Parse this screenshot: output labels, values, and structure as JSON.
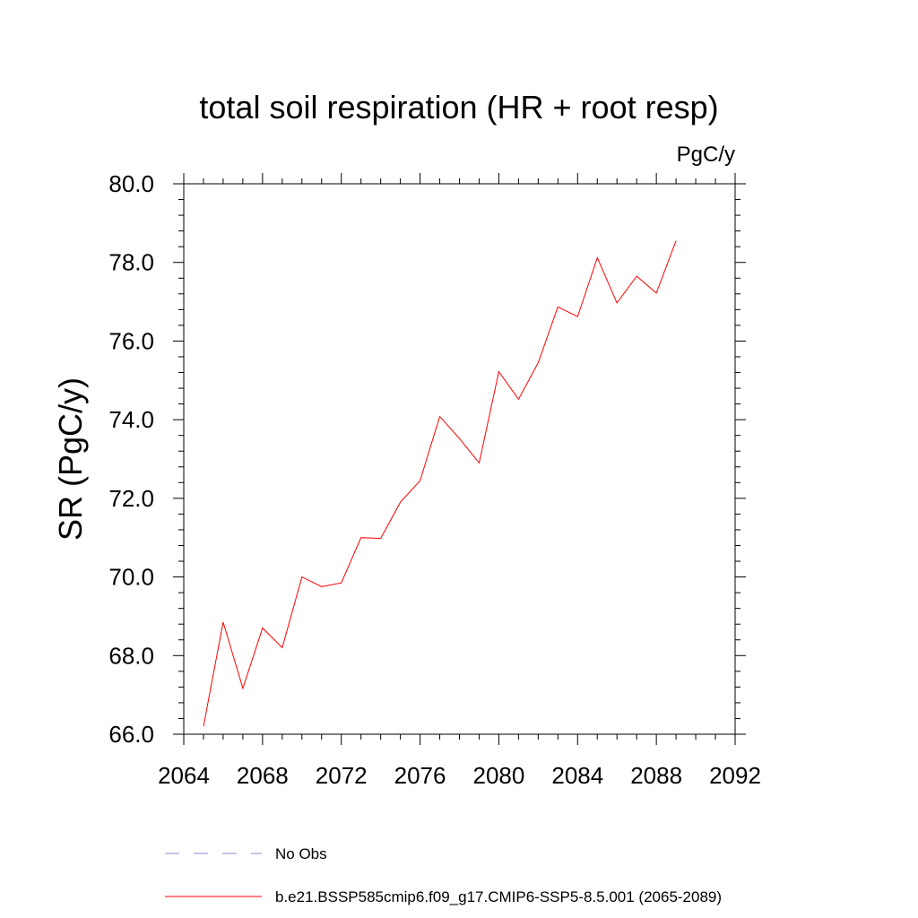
{
  "chart_data": {
    "type": "line",
    "title": "total soil respiration (HR + root resp)",
    "units": "PgC/y",
    "ylabel": "SR  (PgC/y)",
    "xlabel": "",
    "xlim": [
      2064,
      2092
    ],
    "ylim": [
      66.0,
      80.0
    ],
    "x_ticks": [
      2064,
      2068,
      2072,
      2076,
      2080,
      2084,
      2088,
      2092
    ],
    "x_tick_labels": [
      "2064",
      "2068",
      "2072",
      "2076",
      "2080",
      "2084",
      "2088",
      "2092"
    ],
    "y_ticks": [
      66.0,
      68.0,
      70.0,
      72.0,
      74.0,
      76.0,
      78.0,
      80.0
    ],
    "y_tick_labels": [
      "66.0",
      "68.0",
      "70.0",
      "72.0",
      "74.0",
      "76.0",
      "78.0",
      "80.0"
    ],
    "grid": false,
    "legend_position": "bottom",
    "series": [
      {
        "name": "b.e21.BSSP585cmip6.f09_g17.CMIP6-SSP5-8.5.001 (2065-2089)",
        "color": "#ff0000",
        "style": "solid",
        "x": [
          2065,
          2066,
          2067,
          2068,
          2069,
          2070,
          2071,
          2072,
          2073,
          2074,
          2075,
          2076,
          2077,
          2078,
          2079,
          2080,
          2081,
          2082,
          2083,
          2084,
          2085,
          2086,
          2087,
          2088,
          2089
        ],
        "y": [
          66.2,
          68.85,
          67.17,
          68.7,
          68.2,
          70.0,
          69.75,
          69.85,
          71.0,
          70.98,
          71.9,
          72.45,
          74.08,
          73.52,
          72.9,
          75.22,
          74.52,
          75.45,
          76.87,
          76.62,
          78.12,
          76.97,
          77.65,
          77.22,
          78.55
        ]
      }
    ],
    "legend": [
      {
        "label": "No Obs",
        "color": "#8888cc",
        "style": "dashed"
      },
      {
        "label": "b.e21.BSSP585cmip6.f09_g17.CMIP6-SSP5-8.5.001 (2065-2089)",
        "color": "#ff0000",
        "style": "solid"
      }
    ]
  }
}
